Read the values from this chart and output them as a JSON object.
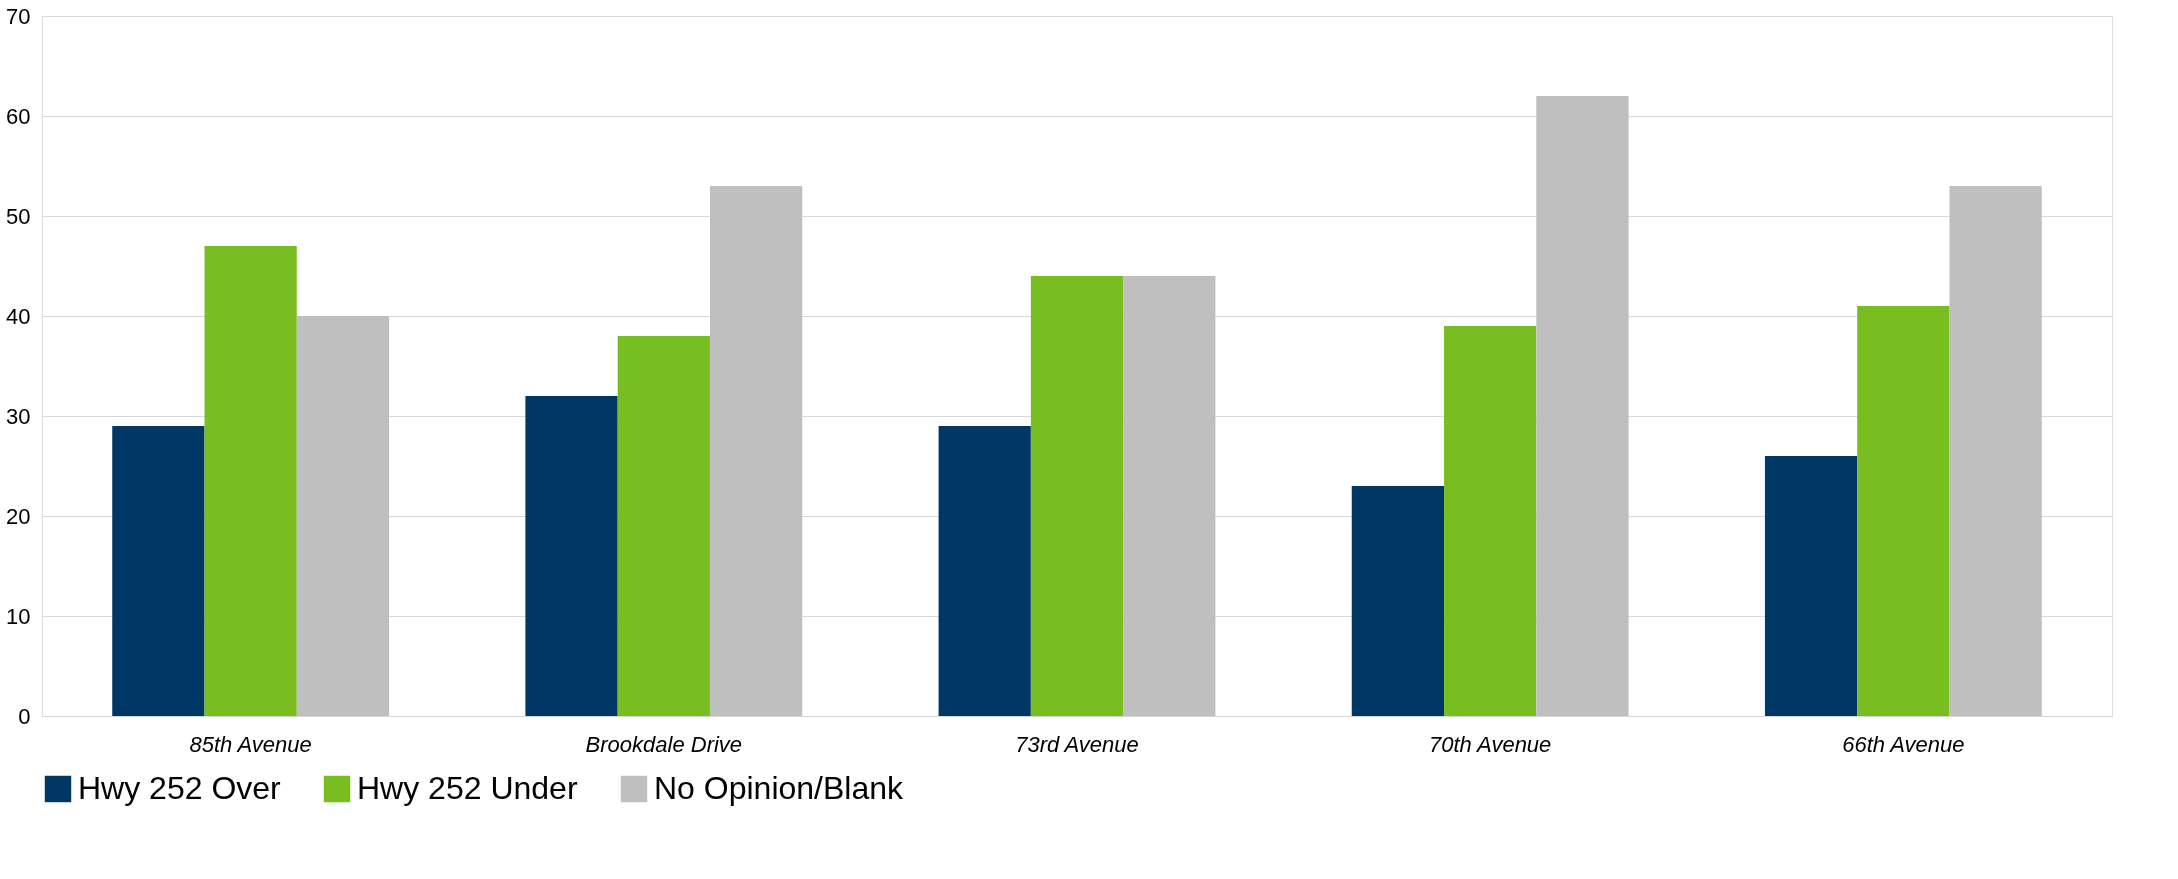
{
  "chart_data": {
    "type": "bar",
    "categories": [
      "85th Avenue",
      "Brookdale Drive",
      "73rd Avenue",
      "70th Avenue",
      "66th Avenue"
    ],
    "series": [
      {
        "name": "Hwy 252 Over",
        "color": "#003865",
        "values": [
          29,
          32,
          29,
          23,
          26
        ]
      },
      {
        "name": "Hwy 252 Under",
        "color": "#78be21",
        "values": [
          47,
          38,
          44,
          39,
          41
        ]
      },
      {
        "name": "No Opinion/Blank",
        "color": "#bfbfbf",
        "values": [
          40,
          53,
          44,
          62,
          53
        ]
      }
    ],
    "ylim": [
      0,
      70
    ],
    "yticks": [
      0,
      10,
      20,
      30,
      40,
      50,
      60,
      70
    ],
    "grid": "y",
    "legend": "bottom"
  }
}
